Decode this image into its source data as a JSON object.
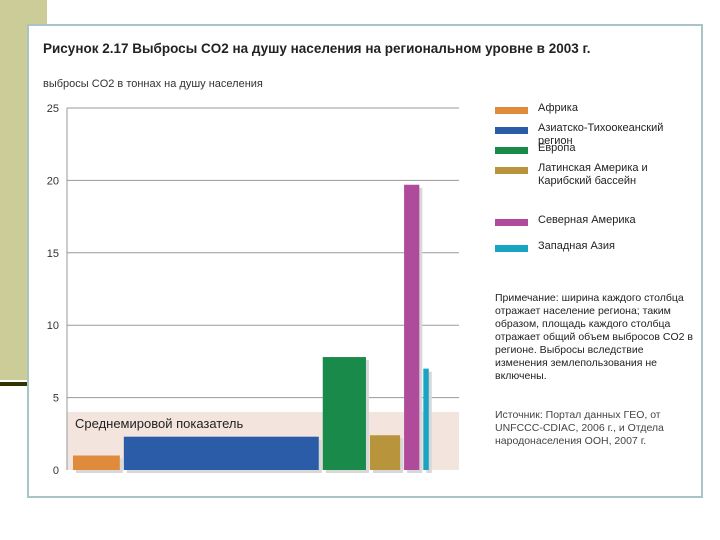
{
  "chart_data": {
    "type": "bar",
    "title": "Рисунок 2.17 Выбросы CO2 на душу населения на региональном уровне в 2003 г.",
    "ylabel": "выбросы CO2 в тоннах на душу населения",
    "ylim": [
      0,
      25
    ],
    "yticks": [
      0,
      5,
      10,
      15,
      20,
      25
    ],
    "categories": [
      "Африка",
      "Азиатско-Тихоокеанский регион",
      "Европа",
      "Латинская Америка и Карибский бассейн",
      "Северная Америка",
      "Западная Азия"
    ],
    "values": [
      1.0,
      2.3,
      7.8,
      2.4,
      19.7,
      7.0
    ],
    "population_share": [
      0.129,
      0.537,
      0.119,
      0.083,
      0.042,
      0.015
    ],
    "colors": [
      "#e08a3c",
      "#2a5ca8",
      "#1a8a4a",
      "#b8953c",
      "#b04a9a",
      "#1aa4c4"
    ],
    "world_average": {
      "label": "Среднемировой показатель",
      "value": 4.0
    }
  },
  "legend": {
    "items": [
      {
        "label": "Африка",
        "color": "#e08a3c"
      },
      {
        "label": "Азиатско-Тихоокеанский регион",
        "color": "#2a5ca8"
      },
      {
        "label": "Европа",
        "color": "#1a8a4a"
      },
      {
        "label": "Латинская Америка и Карибский бассейн",
        "color": "#b8953c"
      },
      {
        "label": "Северная Америка",
        "color": "#b04a9a"
      },
      {
        "label": "Западная Азия",
        "color": "#1aa4c4"
      }
    ]
  },
  "note": "Примечание: ширина каждого столбца отражает население региона; таким образом, площадь каждого столбца отражает общий объем выбросов CO2 в регионе. Выбросы вследствие изменения землепользования не включены.",
  "source": "Источник: Портал данных ГЕО, от UNFCCC-CDIAC, 2006 г., и Отдела народонаселения ООН, 2007 г.",
  "decor": {
    "block_color": "#cccc99",
    "line_color": "#333300",
    "frame_color": "#a8c4c4"
  }
}
